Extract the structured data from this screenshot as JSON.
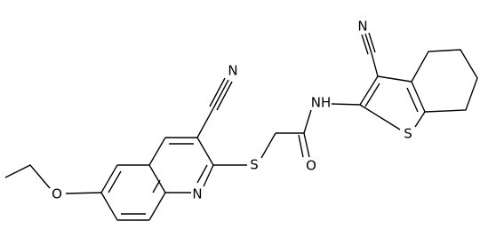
{
  "atoms": [
    "N",
    "O",
    "N",
    "S",
    "O",
    "NH",
    "N",
    "S"
  ]
}
